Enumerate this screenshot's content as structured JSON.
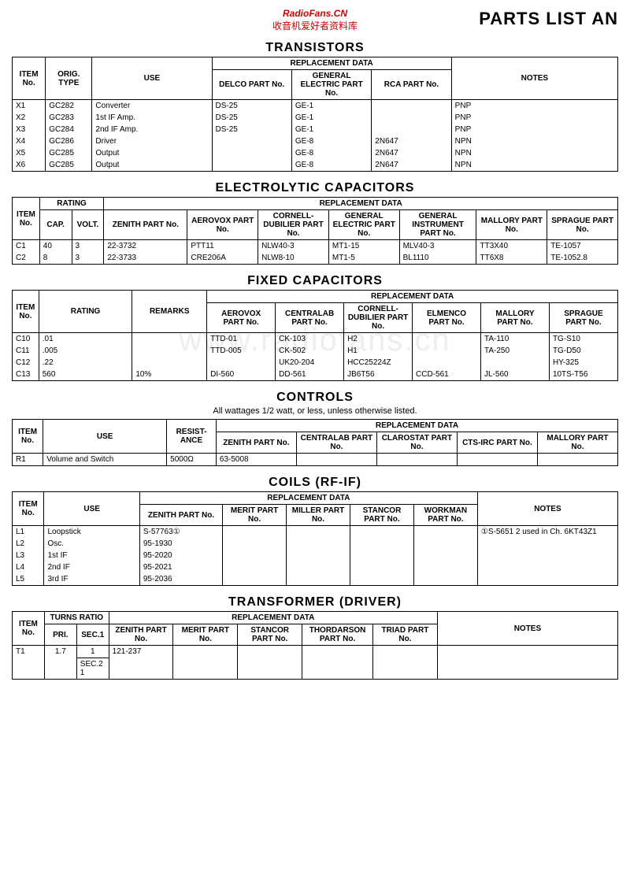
{
  "header": {
    "watermark1": "RadioFans.CN",
    "watermark2": "收音机爱好者资料库",
    "page_title": "PARTS LIST AN",
    "bg_watermark": "www.radiofans.cn"
  },
  "transistors": {
    "title": "TRANSISTORS",
    "headers": {
      "item": "ITEM No.",
      "orig": "ORIG. TYPE",
      "use": "USE",
      "replacement": "REPLACEMENT DATA",
      "delco": "DELCO PART No.",
      "ge": "GENERAL ELECTRIC PART No.",
      "rca": "RCA PART No.",
      "notes": "NOTES"
    },
    "rows": [
      {
        "item": "X1",
        "orig": "GC282",
        "use": "Converter",
        "delco": "DS-25",
        "ge": "GE-1",
        "rca": "",
        "notes": "PNP"
      },
      {
        "item": "X2",
        "orig": "GC283",
        "use": "1st IF Amp.",
        "delco": "DS-25",
        "ge": "GE-1",
        "rca": "",
        "notes": "PNP"
      },
      {
        "item": "X3",
        "orig": "GC284",
        "use": "2nd IF Amp.",
        "delco": "DS-25",
        "ge": "GE-1",
        "rca": "",
        "notes": "PNP"
      },
      {
        "item": "X4",
        "orig": "GC286",
        "use": "Driver",
        "delco": "",
        "ge": "GE-8",
        "rca": "2N647",
        "notes": "NPN"
      },
      {
        "item": "X5",
        "orig": "GC285",
        "use": "Output",
        "delco": "",
        "ge": "GE-8",
        "rca": "2N647",
        "notes": "NPN"
      },
      {
        "item": "X6",
        "orig": "GC285",
        "use": "Output",
        "delco": "",
        "ge": "GE-8",
        "rca": "2N647",
        "notes": "NPN"
      }
    ]
  },
  "electrolytic": {
    "title": "ELECTROLYTIC CAPACITORS",
    "headers": {
      "item": "ITEM No.",
      "rating": "RATING",
      "cap": "CAP.",
      "volt": "VOLT.",
      "replacement": "REPLACEMENT DATA",
      "zenith": "ZENITH PART No.",
      "aerovox": "AEROVOX PART No.",
      "cornell": "CORNELL-DUBILIER PART No.",
      "ge": "GENERAL ELECTRIC PART No.",
      "gi": "GENERAL INSTRUMENT PART No.",
      "mallory": "MALLORY PART No.",
      "sprague": "SPRAGUE PART No."
    },
    "rows": [
      {
        "item": "C1",
        "cap": "40",
        "volt": "3",
        "zenith": "22-3732",
        "aerovox": "PTT11",
        "cornell": "NLW40-3",
        "ge": "MT1-15",
        "gi": "MLV40-3",
        "mallory": "TT3X40",
        "sprague": "TE-1057"
      },
      {
        "item": "C2",
        "cap": "8",
        "volt": "3",
        "zenith": "22-3733",
        "aerovox": "CRE206A",
        "cornell": "NLW8-10",
        "ge": "MT1-5",
        "gi": "BL1110",
        "mallory": "TT6X8",
        "sprague": "TE-1052.8"
      }
    ]
  },
  "fixed": {
    "title": "FIXED CAPACITORS",
    "headers": {
      "item": "ITEM No.",
      "rating": "RATING",
      "remarks": "REMARKS",
      "replacement": "REPLACEMENT DATA",
      "aerovox": "AEROVOX PART No.",
      "centralab": "CENTRALAB PART No.",
      "cornell": "CORNELL-DUBILIER PART No.",
      "elmenco": "ELMENCO PART No.",
      "mallory": "MALLORY PART No.",
      "sprague": "SPRAGUE PART No."
    },
    "rows": [
      {
        "item": "C10",
        "rating": ".01",
        "remarks": "",
        "aerovox": "TTD-01",
        "centralab": "CK-103",
        "cornell": "H2",
        "elmenco": "",
        "mallory": "TA-110",
        "sprague": "TG-S10"
      },
      {
        "item": "C11",
        "rating": ".005",
        "remarks": "",
        "aerovox": "TTD-005",
        "centralab": "CK-502",
        "cornell": "H1",
        "elmenco": "",
        "mallory": "TA-250",
        "sprague": "TG-D50"
      },
      {
        "item": "C12",
        "rating": ".22",
        "remarks": "",
        "aerovox": "",
        "centralab": "UK20-204",
        "cornell": "HCC25224Z",
        "elmenco": "",
        "mallory": "",
        "sprague": "HY-325"
      },
      {
        "item": "C13",
        "rating": "560",
        "remarks": "10%",
        "aerovox": "DI-560",
        "centralab": "DD-561",
        "cornell": "JB6T56",
        "elmenco": "CCD-561",
        "mallory": "JL-560",
        "sprague": "10TS-T56"
      }
    ]
  },
  "controls": {
    "title": "CONTROLS",
    "subtitle": "All wattages 1/2 watt, or less, unless otherwise listed.",
    "headers": {
      "item": "ITEM No.",
      "use": "USE",
      "resist": "RESIST-ANCE",
      "replacement": "REPLACEMENT DATA",
      "zenith": "ZENITH PART No.",
      "centralab": "CENTRALAB PART No.",
      "clarostat": "CLAROSTAT PART No.",
      "cts": "CTS-IRC PART No.",
      "mallory": "MALLORY PART No."
    },
    "rows": [
      {
        "item": "R1",
        "use": "Volume and Switch",
        "resist": "5000Ω",
        "zenith": "63-5008",
        "centralab": "",
        "clarostat": "",
        "cts": "",
        "mallory": ""
      }
    ]
  },
  "coils": {
    "title": "COILS (RF-IF)",
    "headers": {
      "item": "ITEM No.",
      "use": "USE",
      "replacement": "REPLACEMENT DATA",
      "zenith": "ZENITH PART No.",
      "merit": "MERIT PART No.",
      "miller": "MILLER PART No.",
      "stancor": "STANCOR PART No.",
      "workman": "WORKMAN PART No.",
      "notes": "NOTES"
    },
    "rows": [
      {
        "item": "L1",
        "use": "Loopstick",
        "zenith": "S-57763①",
        "merit": "",
        "miller": "",
        "stancor": "",
        "workman": "",
        "notes": "①S-5651 2 used in Ch. 6KT43Z1"
      },
      {
        "item": "L2",
        "use": "Osc.",
        "zenith": "95-1930",
        "merit": "",
        "miller": "",
        "stancor": "",
        "workman": "",
        "notes": ""
      },
      {
        "item": "L3",
        "use": "1st IF",
        "zenith": "95-2020",
        "merit": "",
        "miller": "",
        "stancor": "",
        "workman": "",
        "notes": ""
      },
      {
        "item": "L4",
        "use": "2nd IF",
        "zenith": "95-2021",
        "merit": "",
        "miller": "",
        "stancor": "",
        "workman": "",
        "notes": ""
      },
      {
        "item": "L5",
        "use": "3rd IF",
        "zenith": "95-2036",
        "merit": "",
        "miller": "",
        "stancor": "",
        "workman": "",
        "notes": ""
      }
    ]
  },
  "transformer": {
    "title": "TRANSFORMER (DRIVER)",
    "headers": {
      "item": "ITEM No.",
      "turns": "TURNS RATIO",
      "pri": "PRI.",
      "sec1": "SEC.1",
      "sec2": "SEC.2",
      "replacement": "REPLACEMENT DATA",
      "zenith": "ZENITH PART No.",
      "merit": "MERIT PART No.",
      "stancor": "STANCOR PART No.",
      "thordarson": "THORDARSON PART No.",
      "triad": "TRIAD PART No.",
      "notes": "NOTES"
    },
    "rows": [
      {
        "item": "T1",
        "pri": "1.7",
        "sec1": "1",
        "sec2": "1",
        "zenith": "121-237",
        "merit": "",
        "stancor": "",
        "thordarson": "",
        "triad": "",
        "notes": ""
      }
    ]
  }
}
